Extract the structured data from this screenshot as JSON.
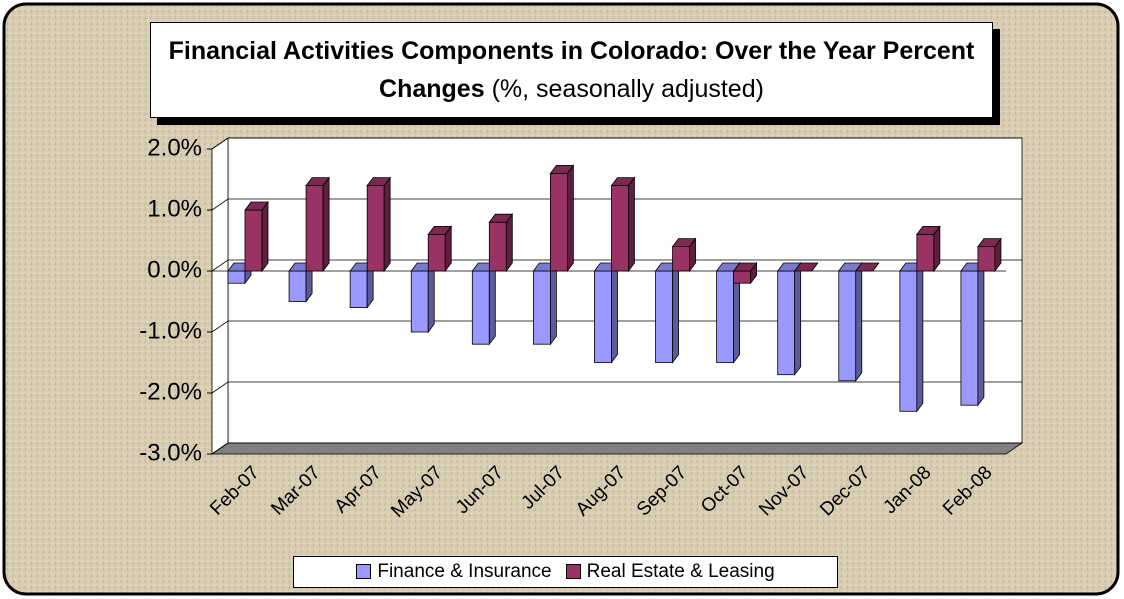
{
  "chart_data": {
    "type": "bar",
    "title": "Financial Activities Components in Colorado:  Over the Year Percent Changes",
    "subtitle": "(%, seasonally adjusted)",
    "categories": [
      "Feb-07",
      "Mar-07",
      "Apr-07",
      "May-07",
      "Jun-07",
      "Jul-07",
      "Aug-07",
      "Sep-07",
      "Oct-07",
      "Nov-07",
      "Dec-07",
      "Jan-08",
      "Feb-08"
    ],
    "series": [
      {
        "name": "Finance & Insurance",
        "color": "#9999ff",
        "values": [
          -0.2,
          -0.5,
          -0.6,
          -1.0,
          -1.2,
          -1.2,
          -1.5,
          -1.5,
          -1.5,
          -1.7,
          -1.8,
          -2.3,
          -2.2
        ]
      },
      {
        "name": "Real Estate & Leasing",
        "color": "#993366",
        "values": [
          1.0,
          1.4,
          1.4,
          0.6,
          0.8,
          1.6,
          1.4,
          0.4,
          -0.2,
          0.0,
          0.0,
          0.6,
          0.4
        ]
      }
    ],
    "ylim": [
      -3,
      2
    ],
    "yticks": [
      {
        "value": -3,
        "label": "-3.0%"
      },
      {
        "value": -2,
        "label": "-2.0%"
      },
      {
        "value": -1,
        "label": "-1.0%"
      },
      {
        "value": 0,
        "label": "0.0%"
      },
      {
        "value": 1,
        "label": "1.0%"
      },
      {
        "value": 2,
        "label": "2.0%"
      }
    ],
    "grid": true,
    "legend": "bottom"
  }
}
